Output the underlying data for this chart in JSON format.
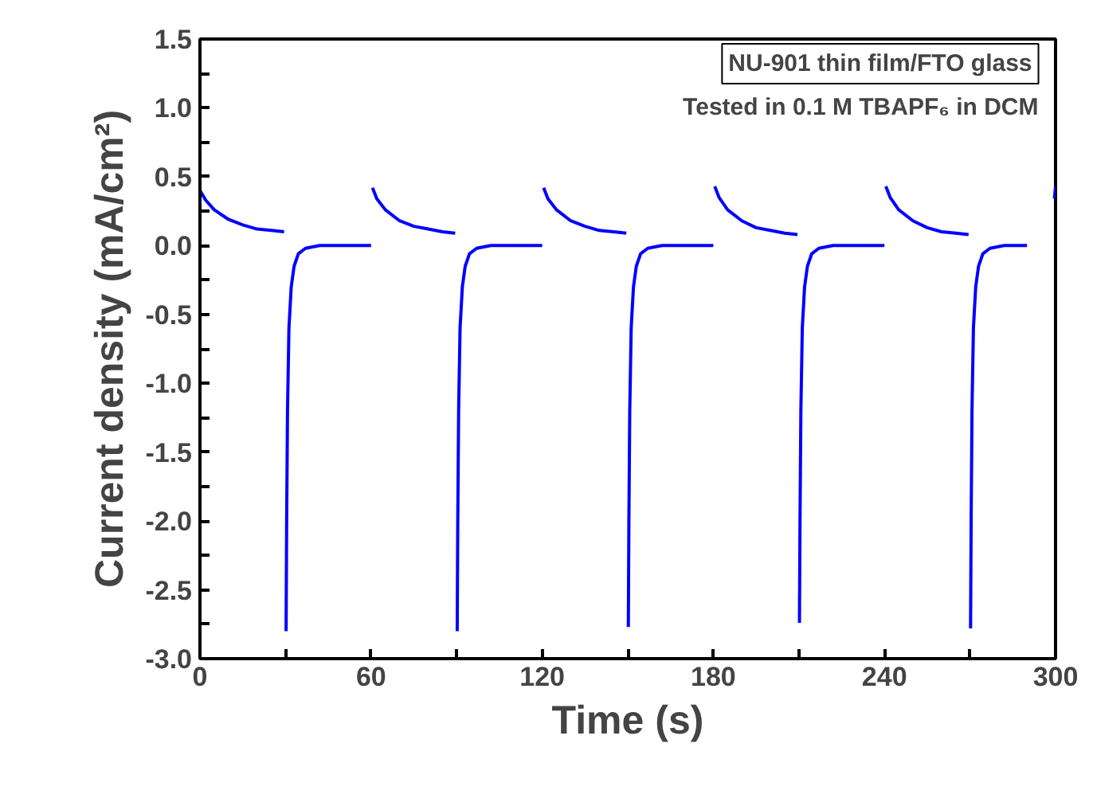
{
  "chart_data": {
    "type": "line",
    "xlabel": "Time (s)",
    "ylabel": "Current density (mA/cm²)",
    "annotations": [
      "NU-901 thin film/FTO glass",
      "Tested in 0.1 M TBAPF₆ in DCM"
    ],
    "x": [
      0,
      2,
      5,
      10,
      15,
      20,
      25,
      29.5,
      29.9,
      30.2,
      30.4,
      30.7,
      31.2,
      32,
      33,
      34.5,
      37,
      42,
      50,
      60,
      60.2,
      60.5,
      62,
      65,
      70,
      75,
      80,
      85,
      89.5,
      89.9,
      90.2,
      90.4,
      90.7,
      91.2,
      92,
      93,
      94.5,
      97,
      102,
      110,
      120,
      120.2,
      120.5,
      122,
      125,
      130,
      135,
      140,
      145,
      149.5,
      149.9,
      150.2,
      150.4,
      150.7,
      151.2,
      152,
      153,
      154.5,
      157,
      162,
      170,
      180,
      180.2,
      180.5,
      182,
      185,
      190,
      195,
      200,
      205,
      209.5,
      209.9,
      210.2,
      210.4,
      210.7,
      211.2,
      212,
      213,
      214.5,
      217,
      222,
      230,
      240,
      240.2,
      240.5,
      242,
      245,
      250,
      255,
      260,
      265,
      269.5,
      269.9,
      270.2,
      270.4,
      270.7,
      271.2,
      272,
      273,
      274.5,
      277,
      282,
      290,
      299.5,
      299.6,
      300
    ],
    "series": [
      {
        "color": "#0000ff",
        "values": [
          0.4,
          0.33,
          0.26,
          0.19,
          0.15,
          0.12,
          0.11,
          0.1,
          null,
          -2.8,
          -2.0,
          -1.2,
          -0.6,
          -0.3,
          -0.15,
          -0.06,
          -0.02,
          0,
          0,
          0,
          null,
          0.42,
          0.34,
          0.26,
          0.18,
          0.14,
          0.12,
          0.1,
          0.09,
          null,
          -2.8,
          -2.0,
          -1.2,
          -0.6,
          -0.3,
          -0.15,
          -0.06,
          -0.02,
          0,
          0,
          0,
          null,
          0.42,
          0.34,
          0.26,
          0.18,
          0.14,
          0.11,
          0.1,
          0.09,
          null,
          -2.77,
          -2.0,
          -1.2,
          -0.6,
          -0.3,
          -0.15,
          -0.06,
          -0.02,
          0,
          0,
          0,
          null,
          0.43,
          0.35,
          0.26,
          0.18,
          0.13,
          0.11,
          0.09,
          0.08,
          null,
          -2.74,
          -2.0,
          -1.2,
          -0.6,
          -0.3,
          -0.15,
          -0.06,
          -0.02,
          0,
          0,
          0,
          null,
          0.43,
          0.35,
          0.26,
          0.18,
          0.13,
          0.1,
          0.09,
          0.08,
          null,
          -2.78,
          -2.0,
          -1.2,
          -0.6,
          -0.3,
          -0.15,
          -0.06,
          -0.02,
          0,
          0,
          null,
          0.34,
          0.43
        ]
      }
    ],
    "xlim": [
      0,
      300
    ],
    "ylim": [
      -3.0,
      1.5
    ],
    "xticks": [
      0,
      {
        "value": 30,
        "label": null
      },
      60,
      {
        "value": 90,
        "label": null
      },
      120,
      {
        "value": 150,
        "label": null
      },
      180,
      {
        "value": 210,
        "label": null
      },
      240,
      {
        "value": 270,
        "label": null
      },
      300
    ],
    "yticks": [
      {
        "value": -3.0,
        "label": "-3.0"
      },
      {
        "value": -2.75,
        "label": null
      },
      {
        "value": -2.5,
        "label": "-2.5"
      },
      {
        "value": -2.25,
        "label": null
      },
      {
        "value": -2.0,
        "label": "-2.0"
      },
      {
        "value": -1.75,
        "label": null
      },
      {
        "value": -1.5,
        "label": "-1.5"
      },
      {
        "value": -1.25,
        "label": null
      },
      {
        "value": -1.0,
        "label": "-1.0"
      },
      {
        "value": -0.75,
        "label": null
      },
      {
        "value": -0.5,
        "label": "-0.5"
      },
      {
        "value": -0.25,
        "label": null
      },
      {
        "value": 0,
        "label": "0.0"
      },
      {
        "value": 0.25,
        "label": null
      },
      {
        "value": 0.5,
        "label": "0.5"
      },
      {
        "value": 0.75,
        "label": null
      },
      {
        "value": 1.0,
        "label": "1.0"
      },
      {
        "value": 1.25,
        "label": null
      },
      {
        "value": 1.5,
        "label": "1.5"
      }
    ],
    "grid": false,
    "marker": "none",
    "line_style": "solid"
  }
}
